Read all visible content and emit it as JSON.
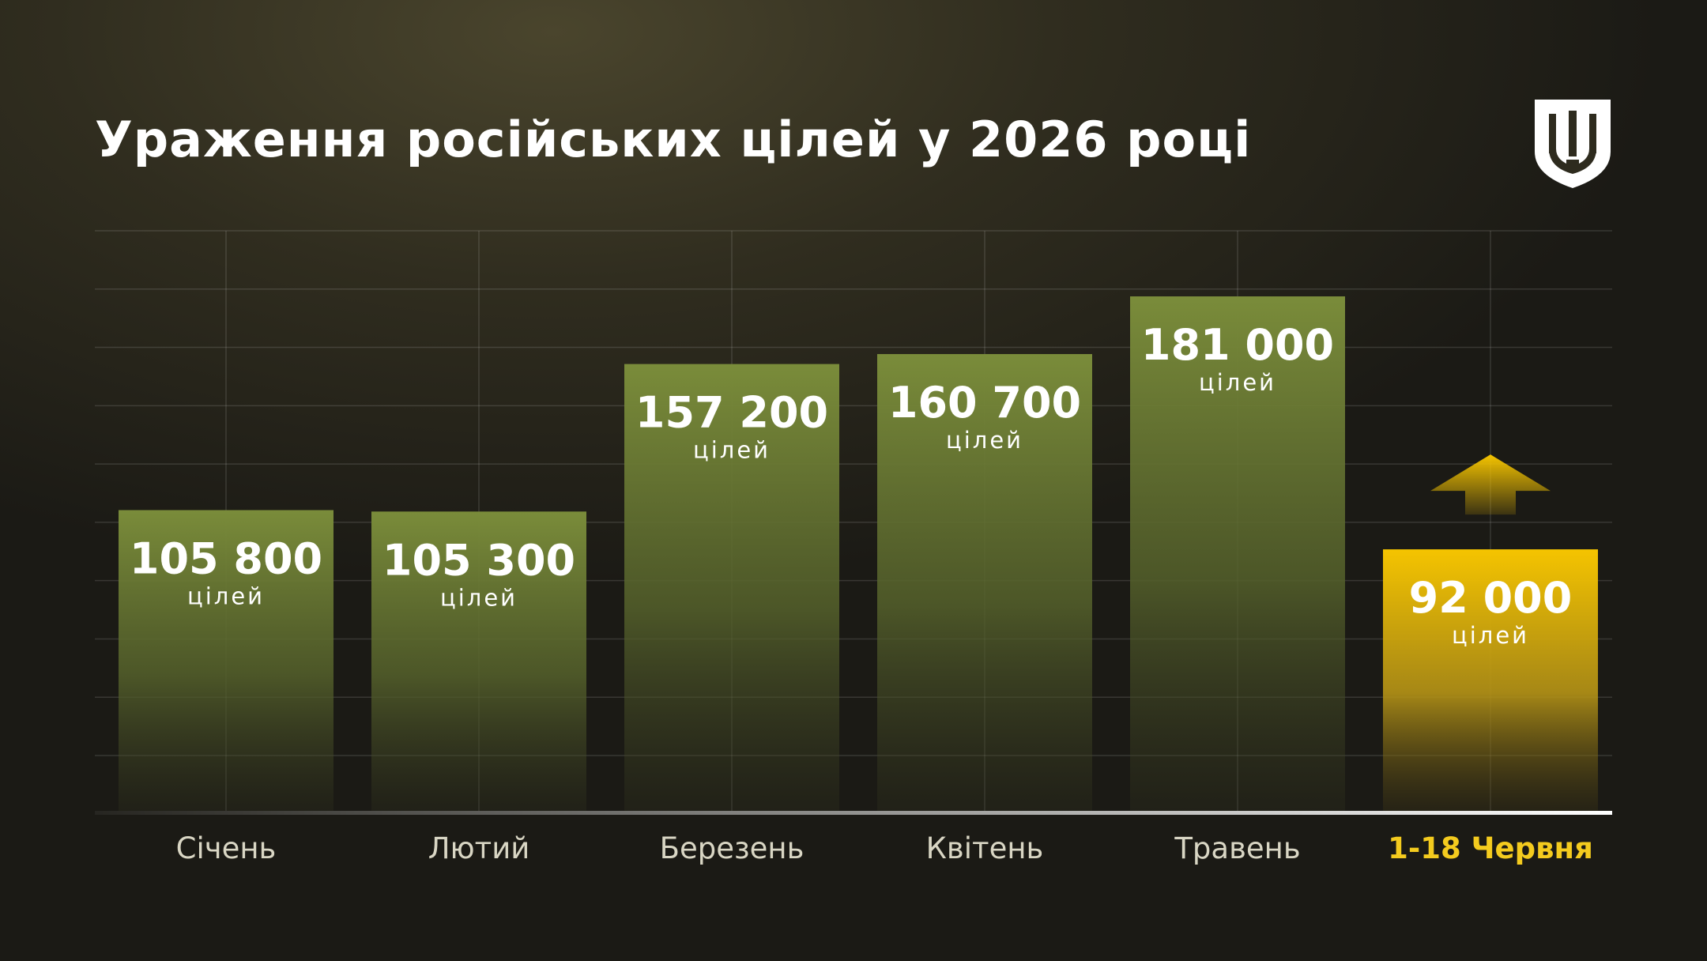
{
  "title": "Ураження російських цілей у 2026 році",
  "colors": {
    "bar": "#7a8c3a",
    "highlight_bar": "#f5c400",
    "highlight_text": "#f4cb1e"
  },
  "icons": {
    "emblem": "trident-shield-icon",
    "arrow": "up-arrow-icon"
  },
  "chart_data": {
    "type": "bar",
    "categories": [
      "Січень",
      "Лютий",
      "Березень",
      "Квітень",
      "Травень",
      "1-18 Червня"
    ],
    "values": [
      105800,
      105300,
      157200,
      160700,
      181000,
      92000
    ],
    "value_labels": [
      "105 800",
      "105 300",
      "157 200",
      "160 700",
      "181 000",
      "92 000"
    ],
    "unit_label": "цілей",
    "highlight_index": 5,
    "ylim": [
      0,
      200000
    ],
    "grid": true,
    "legend": "none"
  }
}
